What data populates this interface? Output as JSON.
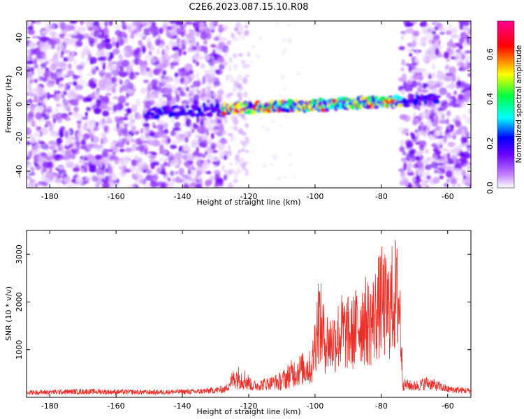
{
  "title": "C2E6.2023.087.15.10.R08",
  "colors": {
    "snr_line": "#e8302a",
    "axes": "#000000",
    "background": "#ffffff"
  },
  "chart_data": [
    {
      "type": "heatmap",
      "xlabel": "Height of straight line (km)",
      "ylabel": "Frequency (Hz)",
      "xlim": [
        -187,
        -53
      ],
      "ylim": [
        -50,
        50
      ],
      "x_ticks": [
        "-180",
        "-160",
        "-140",
        "-120",
        "-100",
        "-80",
        "-60"
      ],
      "y_ticks": [
        "-40",
        "-20",
        "0",
        "20",
        "40"
      ],
      "noise_regions_km": [
        [
          -187,
          -127
        ],
        [
          -74,
          -53
        ]
      ],
      "signal_band": {
        "x_start": -151,
        "x_end": -63,
        "freq_start_hz": -5,
        "freq_end_hz": 3
      },
      "colorbar": {
        "label": "Normalized spectral amplitude",
        "range": [
          0,
          0.75
        ],
        "ticks": [
          "0.0",
          "0.2",
          "0.4",
          "0.6"
        ],
        "colormap": [
          "#ffffff",
          "#c080ff",
          "#6a00ff",
          "#0000ff",
          "#00ffff",
          "#00ff40",
          "#ffff00",
          "#ff0000",
          "#ff0090"
        ]
      }
    },
    {
      "type": "line",
      "xlabel": "Height of straight line (km)",
      "ylabel": "SNR (10 * v/v)",
      "xlim": [
        -187,
        -53
      ],
      "ylim": [
        0,
        3500
      ],
      "x_ticks": [
        "-180",
        "-160",
        "-140",
        "-120",
        "-100",
        "-80",
        "-60"
      ],
      "y_ticks": [
        "1000",
        "2000",
        "3000"
      ],
      "envelope": [
        {
          "x": -187,
          "y": 150
        },
        {
          "x": -170,
          "y": 180
        },
        {
          "x": -150,
          "y": 160
        },
        {
          "x": -135,
          "y": 180
        },
        {
          "x": -127,
          "y": 250
        },
        {
          "x": -124,
          "y": 700
        },
        {
          "x": -121,
          "y": 600
        },
        {
          "x": -119,
          "y": 350
        },
        {
          "x": -116,
          "y": 400
        },
        {
          "x": -113,
          "y": 450
        },
        {
          "x": -110,
          "y": 550
        },
        {
          "x": -107,
          "y": 800
        },
        {
          "x": -104,
          "y": 950
        },
        {
          "x": -101,
          "y": 1000
        },
        {
          "x": -99,
          "y": 2700
        },
        {
          "x": -97,
          "y": 1900
        },
        {
          "x": -95,
          "y": 1800
        },
        {
          "x": -92,
          "y": 2200
        },
        {
          "x": -89,
          "y": 2100
        },
        {
          "x": -86,
          "y": 2600
        },
        {
          "x": -83,
          "y": 2500
        },
        {
          "x": -80,
          "y": 3200
        },
        {
          "x": -78,
          "y": 2900
        },
        {
          "x": -76,
          "y": 3450
        },
        {
          "x": -74.5,
          "y": 3100
        },
        {
          "x": -73.5,
          "y": 400
        },
        {
          "x": -70,
          "y": 350
        },
        {
          "x": -66,
          "y": 450
        },
        {
          "x": -60,
          "y": 250
        },
        {
          "x": -53,
          "y": 200
        }
      ]
    }
  ]
}
